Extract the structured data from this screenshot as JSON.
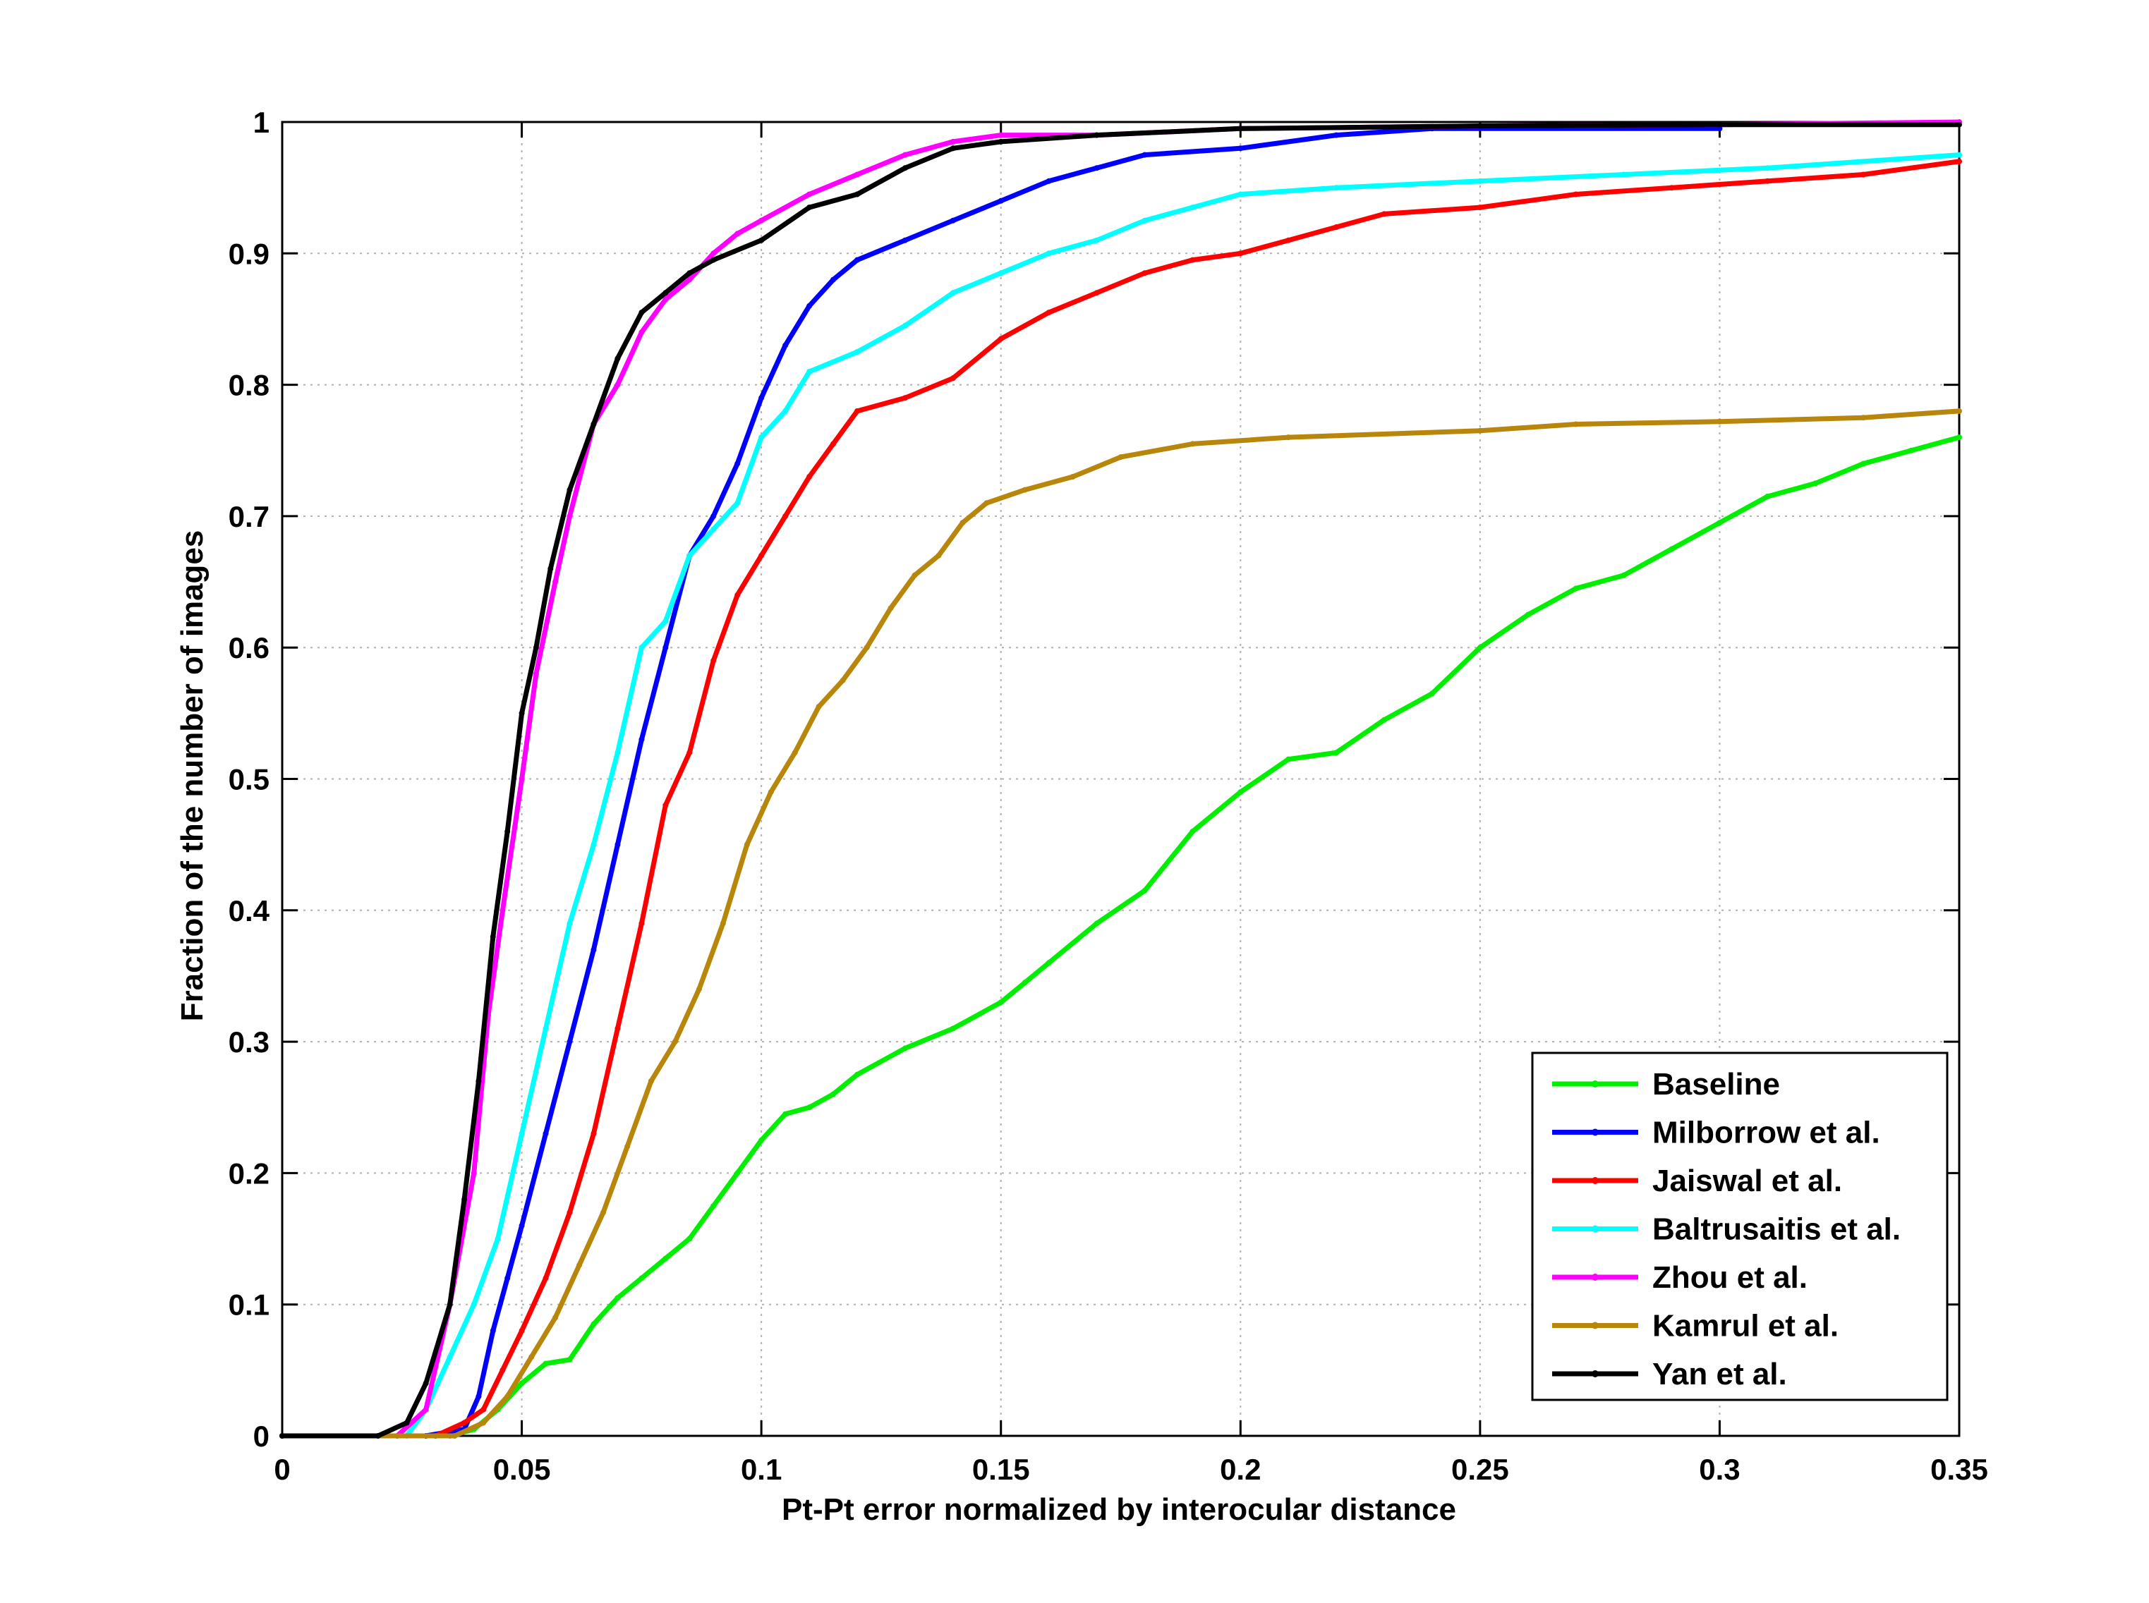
{
  "chart_data": {
    "type": "line",
    "title": "",
    "xlabel": "Pt-Pt error normalized by interocular distance",
    "ylabel": "Fraction of the number of images",
    "xlim": [
      0,
      0.35
    ],
    "ylim": [
      0,
      1
    ],
    "grid": true,
    "legend_position": "bottom-right",
    "x_ticks": [
      {
        "value": 0,
        "label": "0"
      },
      {
        "value": 0.05,
        "label": "0.05"
      },
      {
        "value": 0.1,
        "label": "0.1"
      },
      {
        "value": 0.15,
        "label": "0.15"
      },
      {
        "value": 0.2,
        "label": "0.2"
      },
      {
        "value": 0.25,
        "label": "0.25"
      },
      {
        "value": 0.3,
        "label": "0.3"
      },
      {
        "value": 0.35,
        "label": "0.35"
      }
    ],
    "y_ticks": [
      {
        "value": 0,
        "label": "0"
      },
      {
        "value": 0.1,
        "label": "0.1"
      },
      {
        "value": 0.2,
        "label": "0.2"
      },
      {
        "value": 0.3,
        "label": "0.3"
      },
      {
        "value": 0.4,
        "label": "0.4"
      },
      {
        "value": 0.5,
        "label": "0.5"
      },
      {
        "value": 0.6,
        "label": "0.6"
      },
      {
        "value": 0.7,
        "label": "0.7"
      },
      {
        "value": 0.8,
        "label": "0.8"
      },
      {
        "value": 0.9,
        "label": "0.9"
      },
      {
        "value": 1,
        "label": "1"
      }
    ],
    "series": [
      {
        "name": "Baseline",
        "color": "#00ee00",
        "points": [
          [
            0,
            0
          ],
          [
            0.035,
            0
          ],
          [
            0.04,
            0.005
          ],
          [
            0.045,
            0.02
          ],
          [
            0.05,
            0.04
          ],
          [
            0.055,
            0.055
          ],
          [
            0.06,
            0.058
          ],
          [
            0.065,
            0.085
          ],
          [
            0.07,
            0.105
          ],
          [
            0.075,
            0.12
          ],
          [
            0.08,
            0.135
          ],
          [
            0.085,
            0.15
          ],
          [
            0.09,
            0.175
          ],
          [
            0.095,
            0.2
          ],
          [
            0.1,
            0.225
          ],
          [
            0.105,
            0.245
          ],
          [
            0.11,
            0.25
          ],
          [
            0.115,
            0.26
          ],
          [
            0.12,
            0.275
          ],
          [
            0.13,
            0.295
          ],
          [
            0.14,
            0.31
          ],
          [
            0.15,
            0.33
          ],
          [
            0.155,
            0.345
          ],
          [
            0.16,
            0.36
          ],
          [
            0.17,
            0.39
          ],
          [
            0.18,
            0.415
          ],
          [
            0.19,
            0.46
          ],
          [
            0.2,
            0.49
          ],
          [
            0.21,
            0.515
          ],
          [
            0.22,
            0.52
          ],
          [
            0.23,
            0.545
          ],
          [
            0.24,
            0.565
          ],
          [
            0.25,
            0.6
          ],
          [
            0.26,
            0.625
          ],
          [
            0.27,
            0.645
          ],
          [
            0.28,
            0.655
          ],
          [
            0.29,
            0.675
          ],
          [
            0.3,
            0.695
          ],
          [
            0.31,
            0.715
          ],
          [
            0.32,
            0.725
          ],
          [
            0.33,
            0.74
          ],
          [
            0.34,
            0.75
          ],
          [
            0.35,
            0.76
          ]
        ]
      },
      {
        "name": "Milborrow et al.",
        "color": "#0000ff",
        "points": [
          [
            0,
            0
          ],
          [
            0.03,
            0
          ],
          [
            0.038,
            0.005
          ],
          [
            0.041,
            0.03
          ],
          [
            0.044,
            0.08
          ],
          [
            0.047,
            0.12
          ],
          [
            0.05,
            0.16
          ],
          [
            0.055,
            0.23
          ],
          [
            0.06,
            0.3
          ],
          [
            0.065,
            0.37
          ],
          [
            0.07,
            0.45
          ],
          [
            0.075,
            0.53
          ],
          [
            0.08,
            0.6
          ],
          [
            0.085,
            0.67
          ],
          [
            0.09,
            0.7
          ],
          [
            0.095,
            0.74
          ],
          [
            0.1,
            0.79
          ],
          [
            0.105,
            0.83
          ],
          [
            0.11,
            0.86
          ],
          [
            0.115,
            0.88
          ],
          [
            0.12,
            0.895
          ],
          [
            0.13,
            0.91
          ],
          [
            0.14,
            0.925
          ],
          [
            0.15,
            0.94
          ],
          [
            0.16,
            0.955
          ],
          [
            0.17,
            0.965
          ],
          [
            0.18,
            0.975
          ],
          [
            0.2,
            0.98
          ],
          [
            0.22,
            0.99
          ],
          [
            0.24,
            0.995
          ],
          [
            0.3,
            0.995
          ]
        ]
      },
      {
        "name": "Jaiswal et al.",
        "color": "#ff0000",
        "points": [
          [
            0,
            0
          ],
          [
            0.032,
            0
          ],
          [
            0.038,
            0.01
          ],
          [
            0.042,
            0.02
          ],
          [
            0.046,
            0.05
          ],
          [
            0.05,
            0.08
          ],
          [
            0.055,
            0.12
          ],
          [
            0.06,
            0.17
          ],
          [
            0.065,
            0.23
          ],
          [
            0.07,
            0.31
          ],
          [
            0.075,
            0.39
          ],
          [
            0.08,
            0.48
          ],
          [
            0.085,
            0.52
          ],
          [
            0.09,
            0.59
          ],
          [
            0.095,
            0.64
          ],
          [
            0.1,
            0.67
          ],
          [
            0.105,
            0.7
          ],
          [
            0.11,
            0.73
          ],
          [
            0.115,
            0.755
          ],
          [
            0.12,
            0.78
          ],
          [
            0.13,
            0.79
          ],
          [
            0.14,
            0.805
          ],
          [
            0.15,
            0.835
          ],
          [
            0.16,
            0.855
          ],
          [
            0.17,
            0.87
          ],
          [
            0.18,
            0.885
          ],
          [
            0.19,
            0.895
          ],
          [
            0.2,
            0.9
          ],
          [
            0.21,
            0.91
          ],
          [
            0.22,
            0.92
          ],
          [
            0.23,
            0.93
          ],
          [
            0.25,
            0.935
          ],
          [
            0.27,
            0.945
          ],
          [
            0.29,
            0.95
          ],
          [
            0.31,
            0.955
          ],
          [
            0.33,
            0.96
          ],
          [
            0.35,
            0.97
          ]
        ]
      },
      {
        "name": "Baltrusaitis et al.",
        "color": "#00ffff",
        "points": [
          [
            0,
            0
          ],
          [
            0.026,
            0
          ],
          [
            0.03,
            0.02
          ],
          [
            0.035,
            0.06
          ],
          [
            0.04,
            0.1
          ],
          [
            0.045,
            0.15
          ],
          [
            0.05,
            0.23
          ],
          [
            0.055,
            0.31
          ],
          [
            0.06,
            0.39
          ],
          [
            0.065,
            0.45
          ],
          [
            0.07,
            0.52
          ],
          [
            0.075,
            0.6
          ],
          [
            0.08,
            0.62
          ],
          [
            0.085,
            0.67
          ],
          [
            0.09,
            0.69
          ],
          [
            0.095,
            0.71
          ],
          [
            0.1,
            0.76
          ],
          [
            0.105,
            0.78
          ],
          [
            0.11,
            0.81
          ],
          [
            0.12,
            0.825
          ],
          [
            0.13,
            0.845
          ],
          [
            0.14,
            0.87
          ],
          [
            0.15,
            0.885
          ],
          [
            0.16,
            0.9
          ],
          [
            0.17,
            0.91
          ],
          [
            0.18,
            0.925
          ],
          [
            0.19,
            0.935
          ],
          [
            0.2,
            0.945
          ],
          [
            0.22,
            0.95
          ],
          [
            0.25,
            0.955
          ],
          [
            0.28,
            0.96
          ],
          [
            0.31,
            0.965
          ],
          [
            0.35,
            0.975
          ]
        ]
      },
      {
        "name": "Zhou et al.",
        "color": "#ff00ff",
        "points": [
          [
            0,
            0
          ],
          [
            0.024,
            0
          ],
          [
            0.03,
            0.02
          ],
          [
            0.035,
            0.1
          ],
          [
            0.04,
            0.2
          ],
          [
            0.043,
            0.32
          ],
          [
            0.046,
            0.4
          ],
          [
            0.05,
            0.5
          ],
          [
            0.053,
            0.58
          ],
          [
            0.057,
            0.65
          ],
          [
            0.06,
            0.7
          ],
          [
            0.065,
            0.77
          ],
          [
            0.07,
            0.8
          ],
          [
            0.075,
            0.84
          ],
          [
            0.08,
            0.865
          ],
          [
            0.085,
            0.88
          ],
          [
            0.09,
            0.9
          ],
          [
            0.095,
            0.915
          ],
          [
            0.1,
            0.925
          ],
          [
            0.11,
            0.945
          ],
          [
            0.12,
            0.96
          ],
          [
            0.13,
            0.975
          ],
          [
            0.14,
            0.985
          ],
          [
            0.15,
            0.99
          ],
          [
            0.17,
            0.99
          ],
          [
            0.2,
            0.995
          ],
          [
            0.25,
            0.997
          ],
          [
            0.3,
            0.998
          ],
          [
            0.35,
            1.0
          ]
        ]
      },
      {
        "name": "Kamrul et al.",
        "color": "#b8860b",
        "points": [
          [
            0,
            0
          ],
          [
            0.036,
            0
          ],
          [
            0.042,
            0.01
          ],
          [
            0.047,
            0.03
          ],
          [
            0.052,
            0.06
          ],
          [
            0.057,
            0.09
          ],
          [
            0.062,
            0.13
          ],
          [
            0.067,
            0.17
          ],
          [
            0.072,
            0.22
          ],
          [
            0.077,
            0.27
          ],
          [
            0.082,
            0.3
          ],
          [
            0.087,
            0.34
          ],
          [
            0.092,
            0.39
          ],
          [
            0.097,
            0.45
          ],
          [
            0.102,
            0.49
          ],
          [
            0.107,
            0.52
          ],
          [
            0.112,
            0.555
          ],
          [
            0.117,
            0.575
          ],
          [
            0.122,
            0.6
          ],
          [
            0.127,
            0.63
          ],
          [
            0.132,
            0.655
          ],
          [
            0.137,
            0.67
          ],
          [
            0.142,
            0.695
          ],
          [
            0.147,
            0.71
          ],
          [
            0.155,
            0.72
          ],
          [
            0.165,
            0.73
          ],
          [
            0.175,
            0.745
          ],
          [
            0.19,
            0.755
          ],
          [
            0.21,
            0.76
          ],
          [
            0.25,
            0.765
          ],
          [
            0.27,
            0.77
          ],
          [
            0.3,
            0.772
          ],
          [
            0.33,
            0.775
          ],
          [
            0.35,
            0.78
          ]
        ]
      },
      {
        "name": "Yan et al.",
        "color": "#000000",
        "points": [
          [
            0,
            0
          ],
          [
            0.02,
            0
          ],
          [
            0.026,
            0.01
          ],
          [
            0.03,
            0.04
          ],
          [
            0.035,
            0.1
          ],
          [
            0.038,
            0.18
          ],
          [
            0.041,
            0.27
          ],
          [
            0.044,
            0.38
          ],
          [
            0.047,
            0.46
          ],
          [
            0.05,
            0.55
          ],
          [
            0.053,
            0.6
          ],
          [
            0.056,
            0.66
          ],
          [
            0.06,
            0.72
          ],
          [
            0.065,
            0.77
          ],
          [
            0.07,
            0.82
          ],
          [
            0.075,
            0.855
          ],
          [
            0.08,
            0.87
          ],
          [
            0.085,
            0.885
          ],
          [
            0.09,
            0.895
          ],
          [
            0.1,
            0.91
          ],
          [
            0.11,
            0.935
          ],
          [
            0.12,
            0.945
          ],
          [
            0.13,
            0.965
          ],
          [
            0.14,
            0.98
          ],
          [
            0.15,
            0.985
          ],
          [
            0.17,
            0.99
          ],
          [
            0.2,
            0.995
          ],
          [
            0.25,
            0.997
          ],
          [
            0.3,
            0.998
          ],
          [
            0.35,
            0.998
          ]
        ]
      }
    ]
  }
}
